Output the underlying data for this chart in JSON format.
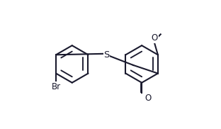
{
  "bg_color": "#ffffff",
  "line_color": "#1a1a2e",
  "line_width": 1.5,
  "font_size": 8.5,
  "lcx": 1.55,
  "lcy": 2.7,
  "lr": 0.88,
  "rcx": 4.85,
  "rcy": 2.7,
  "rr": 0.88,
  "sx": 3.18,
  "sy": 3.14,
  "figw": 3.12,
  "figh": 1.82,
  "xlim": [
    0.2,
    6.8
  ],
  "ylim": [
    0.3,
    5.0
  ]
}
